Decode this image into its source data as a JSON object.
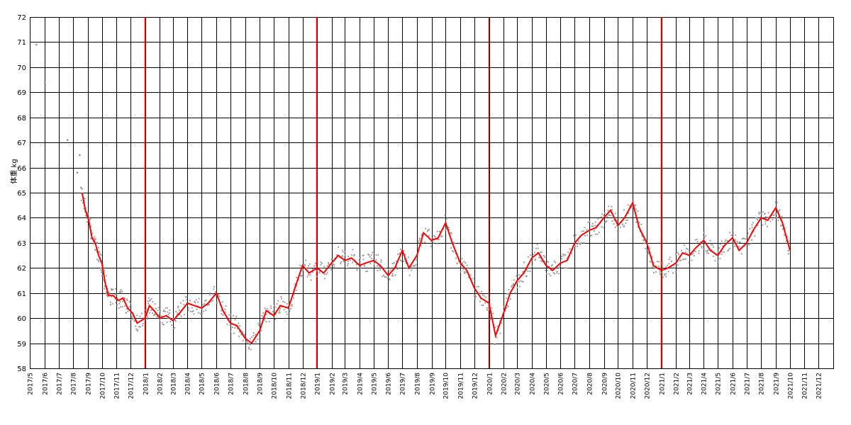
{
  "chart_data": {
    "type": "scatter",
    "title": "",
    "xlabel": "",
    "ylabel": "体重 kg",
    "ylim": [
      58,
      72
    ],
    "xlim": [
      "2017-05-01",
      "2022-01-01"
    ],
    "y_ticks": [
      "58",
      "59",
      "60",
      "61",
      "62",
      "63",
      "64",
      "65",
      "66",
      "67",
      "68",
      "69",
      "70",
      "71",
      "72"
    ],
    "x_ticks": [
      {
        "date": "2017-05-01",
        "label": "2017/5"
      },
      {
        "date": "2017-06-01",
        "label": "2017/6"
      },
      {
        "date": "2017-07-01",
        "label": "2017/7"
      },
      {
        "date": "2017-08-01",
        "label": "2017/8"
      },
      {
        "date": "2017-09-01",
        "label": "2017/9"
      },
      {
        "date": "2017-10-01",
        "label": "2017/10"
      },
      {
        "date": "2017-11-01",
        "label": "2017/11"
      },
      {
        "date": "2017-12-01",
        "label": "2017/12"
      },
      {
        "date": "2018-01-01",
        "label": "2018/1"
      },
      {
        "date": "2018-02-01",
        "label": "2018/2"
      },
      {
        "date": "2018-03-01",
        "label": "2018/3"
      },
      {
        "date": "2018-04-01",
        "label": "2018/4"
      },
      {
        "date": "2018-05-01",
        "label": "2018/5"
      },
      {
        "date": "2018-06-01",
        "label": "2018/6"
      },
      {
        "date": "2018-07-01",
        "label": "2018/7"
      },
      {
        "date": "2018-08-01",
        "label": "2018/8"
      },
      {
        "date": "2018-09-01",
        "label": "2018/9"
      },
      {
        "date": "2018-10-01",
        "label": "2018/10"
      },
      {
        "date": "2018-11-01",
        "label": "2018/11"
      },
      {
        "date": "2018-12-01",
        "label": "2018/12"
      },
      {
        "date": "2019-01-01",
        "label": "2019/1"
      },
      {
        "date": "2019-02-01",
        "label": "2019/2"
      },
      {
        "date": "2019-03-01",
        "label": "2019/3"
      },
      {
        "date": "2019-04-01",
        "label": "2019/4"
      },
      {
        "date": "2019-05-01",
        "label": "2019/5"
      },
      {
        "date": "2019-06-01",
        "label": "2019/6"
      },
      {
        "date": "2019-07-01",
        "label": "2019/7"
      },
      {
        "date": "2019-08-01",
        "label": "2019/8"
      },
      {
        "date": "2019-09-01",
        "label": "2019/9"
      },
      {
        "date": "2019-10-01",
        "label": "2019/10"
      },
      {
        "date": "2019-11-01",
        "label": "2019/11"
      },
      {
        "date": "2019-12-01",
        "label": "2019/12"
      },
      {
        "date": "2020-01-01",
        "label": "2020/1"
      },
      {
        "date": "2020-02-01",
        "label": "2020/2"
      },
      {
        "date": "2020-03-01",
        "label": "2020/3"
      },
      {
        "date": "2020-04-01",
        "label": "2020/4"
      },
      {
        "date": "2020-05-01",
        "label": "2020/5"
      },
      {
        "date": "2020-06-01",
        "label": "2020/6"
      },
      {
        "date": "2020-07-01",
        "label": "2020/7"
      },
      {
        "date": "2020-08-01",
        "label": "2020/8"
      },
      {
        "date": "2020-09-01",
        "label": "2020/9"
      },
      {
        "date": "2020-10-01",
        "label": "2020/10"
      },
      {
        "date": "2020-11-01",
        "label": "2020/11"
      },
      {
        "date": "2020-12-01",
        "label": "2020/12"
      },
      {
        "date": "2021-01-01",
        "label": "2021/1"
      },
      {
        "date": "2021-02-01",
        "label": "2021/2"
      },
      {
        "date": "2021-03-01",
        "label": "2021/3"
      },
      {
        "date": "2021-04-01",
        "label": "2021/4"
      },
      {
        "date": "2021-05-01",
        "label": "2021/5"
      },
      {
        "date": "2021-06-01",
        "label": "2021/6"
      },
      {
        "date": "2021-07-01",
        "label": "2021/7"
      },
      {
        "date": "2021-08-01",
        "label": "2021/8"
      },
      {
        "date": "2021-09-01",
        "label": "2021/9"
      },
      {
        "date": "2021-10-01",
        "label": "2021/10"
      },
      {
        "date": "2021-11-01",
        "label": "2021/11"
      },
      {
        "date": "2021-12-01",
        "label": "2021/12"
      }
    ],
    "year_markers": [
      "2018-01-01",
      "2019-01-01",
      "2020-01-01",
      "2021-01-01"
    ],
    "grid": true,
    "series": [
      {
        "kind": "scatter",
        "color": "#8c8c8c",
        "points": [
          {
            "x": "2017-05-15",
            "y": 70.9
          },
          {
            "x": "2017-06-02",
            "y": 69.4
          },
          {
            "x": "2017-07-20",
            "y": 67.1
          },
          {
            "x": "2017-08-10",
            "y": 65.8
          },
          {
            "x": "2017-08-15",
            "y": 66.5
          },
          {
            "x": "2017-08-18",
            "y": 65.2
          }
        ]
      },
      {
        "kind": "line",
        "color": "#ff0000",
        "points": [
          {
            "x": "2017-08-20",
            "y": 65.0
          },
          {
            "x": "2017-08-27",
            "y": 64.3
          },
          {
            "x": "2017-09-03",
            "y": 63.9
          },
          {
            "x": "2017-09-10",
            "y": 63.2
          },
          {
            "x": "2017-09-17",
            "y": 63.0
          },
          {
            "x": "2017-09-24",
            "y": 62.5
          },
          {
            "x": "2017-10-01",
            "y": 62.2
          },
          {
            "x": "2017-10-08",
            "y": 61.4
          },
          {
            "x": "2017-10-15",
            "y": 60.9
          },
          {
            "x": "2017-10-25",
            "y": 60.9
          },
          {
            "x": "2017-11-05",
            "y": 60.7
          },
          {
            "x": "2017-11-15",
            "y": 60.8
          },
          {
            "x": "2017-11-25",
            "y": 60.4
          },
          {
            "x": "2017-12-05",
            "y": 60.2
          },
          {
            "x": "2017-12-15",
            "y": 59.8
          },
          {
            "x": "2018-01-01",
            "y": 60.0
          },
          {
            "x": "2018-01-10",
            "y": 60.5
          },
          {
            "x": "2018-01-20",
            "y": 60.3
          },
          {
            "x": "2018-02-01",
            "y": 60.0
          },
          {
            "x": "2018-02-15",
            "y": 60.1
          },
          {
            "x": "2018-03-01",
            "y": 59.9
          },
          {
            "x": "2018-03-15",
            "y": 60.2
          },
          {
            "x": "2018-04-01",
            "y": 60.6
          },
          {
            "x": "2018-04-15",
            "y": 60.5
          },
          {
            "x": "2018-05-01",
            "y": 60.4
          },
          {
            "x": "2018-05-15",
            "y": 60.6
          },
          {
            "x": "2018-06-01",
            "y": 61.0
          },
          {
            "x": "2018-06-15",
            "y": 60.3
          },
          {
            "x": "2018-07-01",
            "y": 59.8
          },
          {
            "x": "2018-07-15",
            "y": 59.7
          },
          {
            "x": "2018-08-01",
            "y": 59.2
          },
          {
            "x": "2018-08-15",
            "y": 59.0
          },
          {
            "x": "2018-09-01",
            "y": 59.5
          },
          {
            "x": "2018-09-15",
            "y": 60.3
          },
          {
            "x": "2018-10-01",
            "y": 60.1
          },
          {
            "x": "2018-10-15",
            "y": 60.5
          },
          {
            "x": "2018-11-01",
            "y": 60.4
          },
          {
            "x": "2018-11-15",
            "y": 61.2
          },
          {
            "x": "2018-12-01",
            "y": 62.1
          },
          {
            "x": "2018-12-15",
            "y": 61.8
          },
          {
            "x": "2019-01-01",
            "y": 62.0
          },
          {
            "x": "2019-01-15",
            "y": 61.8
          },
          {
            "x": "2019-02-01",
            "y": 62.2
          },
          {
            "x": "2019-02-15",
            "y": 62.5
          },
          {
            "x": "2019-03-01",
            "y": 62.3
          },
          {
            "x": "2019-03-15",
            "y": 62.4
          },
          {
            "x": "2019-04-01",
            "y": 62.1
          },
          {
            "x": "2019-04-15",
            "y": 62.2
          },
          {
            "x": "2019-05-01",
            "y": 62.3
          },
          {
            "x": "2019-05-15",
            "y": 62.1
          },
          {
            "x": "2019-06-01",
            "y": 61.7
          },
          {
            "x": "2019-06-15",
            "y": 62.0
          },
          {
            "x": "2019-07-01",
            "y": 62.7
          },
          {
            "x": "2019-07-15",
            "y": 62.0
          },
          {
            "x": "2019-08-01",
            "y": 62.5
          },
          {
            "x": "2019-08-15",
            "y": 63.4
          },
          {
            "x": "2019-09-01",
            "y": 63.1
          },
          {
            "x": "2019-09-15",
            "y": 63.2
          },
          {
            "x": "2019-10-01",
            "y": 63.8
          },
          {
            "x": "2019-10-15",
            "y": 63.0
          },
          {
            "x": "2019-11-01",
            "y": 62.2
          },
          {
            "x": "2019-11-15",
            "y": 61.9
          },
          {
            "x": "2019-12-01",
            "y": 61.2
          },
          {
            "x": "2019-12-15",
            "y": 60.8
          },
          {
            "x": "2020-01-01",
            "y": 60.6
          },
          {
            "x": "2020-01-15",
            "y": 59.3
          },
          {
            "x": "2020-02-01",
            "y": 60.2
          },
          {
            "x": "2020-02-15",
            "y": 61.0
          },
          {
            "x": "2020-03-01",
            "y": 61.5
          },
          {
            "x": "2020-03-15",
            "y": 61.8
          },
          {
            "x": "2020-04-01",
            "y": 62.4
          },
          {
            "x": "2020-04-15",
            "y": 62.6
          },
          {
            "x": "2020-05-01",
            "y": 62.1
          },
          {
            "x": "2020-05-15",
            "y": 61.9
          },
          {
            "x": "2020-06-01",
            "y": 62.2
          },
          {
            "x": "2020-06-15",
            "y": 62.3
          },
          {
            "x": "2020-07-01",
            "y": 63.0
          },
          {
            "x": "2020-07-15",
            "y": 63.3
          },
          {
            "x": "2020-08-01",
            "y": 63.5
          },
          {
            "x": "2020-08-15",
            "y": 63.6
          },
          {
            "x": "2020-09-01",
            "y": 64.0
          },
          {
            "x": "2020-09-15",
            "y": 64.3
          },
          {
            "x": "2020-10-01",
            "y": 63.7
          },
          {
            "x": "2020-10-15",
            "y": 64.0
          },
          {
            "x": "2020-11-01",
            "y": 64.6
          },
          {
            "x": "2020-11-15",
            "y": 63.6
          },
          {
            "x": "2020-12-01",
            "y": 63.0
          },
          {
            "x": "2020-12-15",
            "y": 62.1
          },
          {
            "x": "2021-01-01",
            "y": 61.9
          },
          {
            "x": "2021-01-15",
            "y": 62.0
          },
          {
            "x": "2021-02-01",
            "y": 62.2
          },
          {
            "x": "2021-02-15",
            "y": 62.6
          },
          {
            "x": "2021-03-01",
            "y": 62.5
          },
          {
            "x": "2021-03-15",
            "y": 62.8
          },
          {
            "x": "2021-04-01",
            "y": 63.1
          },
          {
            "x": "2021-04-15",
            "y": 62.7
          },
          {
            "x": "2021-05-01",
            "y": 62.5
          },
          {
            "x": "2021-05-15",
            "y": 62.9
          },
          {
            "x": "2021-06-01",
            "y": 63.2
          },
          {
            "x": "2021-06-15",
            "y": 62.7
          },
          {
            "x": "2021-07-01",
            "y": 63.0
          },
          {
            "x": "2021-07-15",
            "y": 63.5
          },
          {
            "x": "2021-08-01",
            "y": 64.0
          },
          {
            "x": "2021-08-15",
            "y": 63.9
          },
          {
            "x": "2021-09-01",
            "y": 64.4
          },
          {
            "x": "2021-09-15",
            "y": 63.8
          },
          {
            "x": "2021-10-01",
            "y": 62.7
          }
        ]
      }
    ]
  }
}
